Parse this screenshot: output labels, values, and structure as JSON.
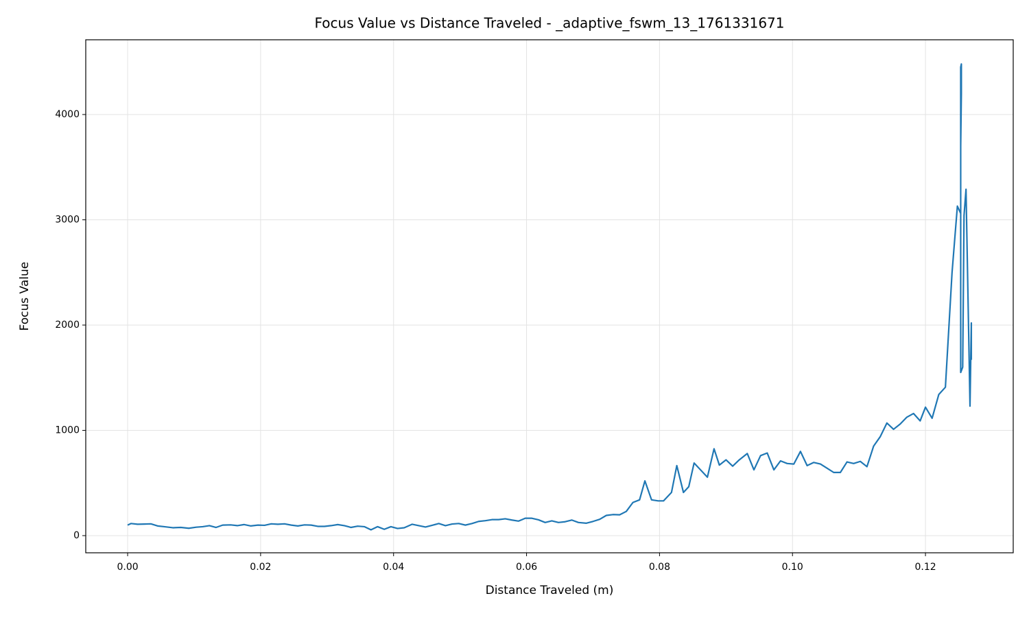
{
  "chart_data": {
    "type": "line",
    "title": "Focus Value vs Distance Traveled - _adaptive_fswm_13_1761331671",
    "xlabel": "Distance Traveled (m)",
    "ylabel": "Focus Value",
    "color": "#1f77b4",
    "grid": true,
    "xlim": [
      -0.0063,
      0.1332
    ],
    "ylim": [
      -163,
      4710
    ],
    "xticks": [
      {
        "value": 0,
        "label": "0.00"
      },
      {
        "value": 0.02,
        "label": "0.02"
      },
      {
        "value": 0.04,
        "label": "0.04"
      },
      {
        "value": 0.06,
        "label": "0.06"
      },
      {
        "value": 0.08,
        "label": "0.08"
      },
      {
        "value": 0.1,
        "label": "0.10"
      },
      {
        "value": 0.12,
        "label": "0.12"
      }
    ],
    "yticks": [
      0,
      1000,
      2000,
      3000,
      4000
    ],
    "x": [
      0.0,
      0.0005,
      0.0015,
      0.0025,
      0.0035,
      0.0045,
      0.0055,
      0.0068,
      0.008,
      0.0092,
      0.0103,
      0.0113,
      0.0123,
      0.0133,
      0.0143,
      0.0155,
      0.0165,
      0.0175,
      0.0185,
      0.0196,
      0.0206,
      0.0216,
      0.0226,
      0.0236,
      0.0246,
      0.0256,
      0.0266,
      0.0276,
      0.0286,
      0.0296,
      0.0306,
      0.0316,
      0.0326,
      0.0336,
      0.0346,
      0.0356,
      0.0366,
      0.0376,
      0.0386,
      0.0396,
      0.0406,
      0.0416,
      0.0428,
      0.0438,
      0.0448,
      0.0458,
      0.0468,
      0.0478,
      0.0488,
      0.0498,
      0.0508,
      0.0518,
      0.0528,
      0.0538,
      0.0548,
      0.0558,
      0.0568,
      0.0578,
      0.0588,
      0.0598,
      0.0608,
      0.0618,
      0.0628,
      0.0638,
      0.0648,
      0.0658,
      0.0668,
      0.0678,
      0.069,
      0.07,
      0.071,
      0.072,
      0.073,
      0.074,
      0.075,
      0.076,
      0.077,
      0.0778,
      0.0788,
      0.0798,
      0.0806,
      0.0818,
      0.0826,
      0.0836,
      0.0844,
      0.0852,
      0.0872,
      0.0882,
      0.089,
      0.09,
      0.091,
      0.092,
      0.0932,
      0.0942,
      0.0952,
      0.0962,
      0.0972,
      0.0982,
      0.0992,
      0.1002,
      0.1012,
      0.1022,
      0.1032,
      0.1042,
      0.1052,
      0.1062,
      0.1072,
      0.1082,
      0.1092,
      0.1102,
      0.1112,
      0.1122,
      0.1132,
      0.1142,
      0.1152,
      0.1162,
      0.1172,
      0.1182,
      0.1192,
      0.12,
      0.121,
      0.122,
      0.123,
      0.124,
      0.1248,
      0.1253,
      0.1253,
      0.1254,
      0.1254,
      0.1253,
      0.1253,
      0.1256,
      0.1258,
      0.1261,
      0.1267,
      0.1269,
      0.1269
    ],
    "values": [
      100,
      115,
      108,
      110,
      112,
      92,
      85,
      75,
      78,
      70,
      80,
      85,
      95,
      78,
      100,
      102,
      95,
      105,
      92,
      100,
      98,
      112,
      108,
      112,
      100,
      92,
      102,
      100,
      88,
      88,
      95,
      105,
      95,
      78,
      90,
      85,
      55,
      85,
      60,
      85,
      68,
      75,
      108,
      95,
      82,
      98,
      115,
      95,
      110,
      115,
      100,
      115,
      135,
      142,
      152,
      152,
      160,
      148,
      138,
      165,
      165,
      150,
      125,
      140,
      125,
      132,
      148,
      125,
      118,
      135,
      155,
      192,
      200,
      198,
      230,
      315,
      340,
      520,
      340,
      330,
      330,
      410,
      665,
      410,
      465,
      690,
      555,
      825,
      670,
      720,
      660,
      720,
      780,
      625,
      760,
      785,
      625,
      710,
      685,
      680,
      800,
      665,
      695,
      680,
      640,
      600,
      600,
      700,
      685,
      705,
      655,
      850,
      940,
      1070,
      1010,
      1060,
      1125,
      1160,
      1090,
      1220,
      1115,
      1340,
      1410,
      2500,
      3130,
      3060,
      4450,
      4480,
      4200,
      3700,
      1550,
      1600,
      3040,
      3290,
      1230,
      2020,
      1670
    ]
  }
}
